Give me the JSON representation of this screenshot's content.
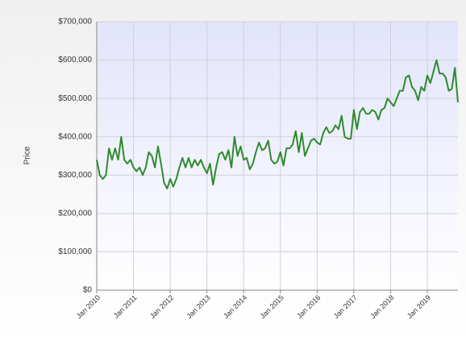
{
  "chart_data": {
    "type": "line",
    "y_label": "Price",
    "categories": [
      "Jan 2010",
      null,
      null,
      null,
      null,
      null,
      null,
      null,
      null,
      null,
      null,
      null,
      "Jan 2011",
      null,
      null,
      null,
      null,
      null,
      null,
      null,
      null,
      null,
      null,
      null,
      "Jan 2012",
      null,
      null,
      null,
      null,
      null,
      null,
      null,
      null,
      null,
      null,
      null,
      "Jan 2013",
      null,
      null,
      null,
      null,
      null,
      null,
      null,
      null,
      null,
      null,
      null,
      "Jan 2014",
      null,
      null,
      null,
      null,
      null,
      null,
      null,
      null,
      null,
      null,
      null,
      "Jan 2015",
      null,
      null,
      null,
      null,
      null,
      null,
      null,
      null,
      null,
      null,
      null,
      "Jan 2016",
      null,
      null,
      null,
      null,
      null,
      null,
      null,
      null,
      null,
      null,
      null,
      "Jan 2017",
      null,
      null,
      null,
      null,
      null,
      null,
      null,
      null,
      null,
      null,
      null,
      "Jan 2018",
      null,
      null,
      null,
      null,
      null,
      null,
      null,
      null,
      null,
      null,
      null,
      "Jan 2019",
      null,
      null,
      null,
      null,
      null,
      null,
      null,
      null,
      null,
      null
    ],
    "series": [
      {
        "color": "#2e8b2e",
        "values": [
          340000,
          300000,
          290000,
          300000,
          370000,
          340000,
          370000,
          340000,
          400000,
          340000,
          330000,
          340000,
          320000,
          310000,
          320000,
          300000,
          320000,
          360000,
          350000,
          320000,
          375000,
          330000,
          280000,
          265000,
          290000,
          270000,
          290000,
          320000,
          345000,
          320000,
          345000,
          320000,
          340000,
          325000,
          340000,
          320000,
          305000,
          330000,
          275000,
          320000,
          355000,
          360000,
          340000,
          365000,
          320000,
          400000,
          350000,
          375000,
          340000,
          345000,
          315000,
          330000,
          360000,
          385000,
          365000,
          370000,
          390000,
          340000,
          330000,
          335000,
          360000,
          325000,
          370000,
          370000,
          380000,
          415000,
          360000,
          410000,
          350000,
          370000,
          390000,
          395000,
          385000,
          380000,
          410000,
          425000,
          410000,
          415000,
          430000,
          420000,
          455000,
          400000,
          395000,
          395000,
          470000,
          420000,
          465000,
          475000,
          460000,
          460000,
          470000,
          465000,
          445000,
          470000,
          475000,
          500000,
          490000,
          480000,
          500000,
          520000,
          520000,
          555000,
          560000,
          530000,
          520000,
          495000,
          530000,
          520000,
          560000,
          540000,
          570000,
          600000,
          565000,
          565000,
          555000,
          520000,
          525000,
          580000,
          490000
        ]
      }
    ],
    "ylim": [
      0,
      700000
    ],
    "yticks": [
      {
        "value": 0,
        "label": "$0"
      },
      {
        "value": 100000,
        "label": "$100,000"
      },
      {
        "value": 200000,
        "label": "$200,000"
      },
      {
        "value": 300000,
        "label": "$300,000"
      },
      {
        "value": 400000,
        "label": "$400,000"
      },
      {
        "value": 500000,
        "label": "$500,000"
      },
      {
        "value": 600000,
        "label": "$600,000"
      },
      {
        "value": 700000,
        "label": "$700,000"
      }
    ],
    "grid": true
  }
}
